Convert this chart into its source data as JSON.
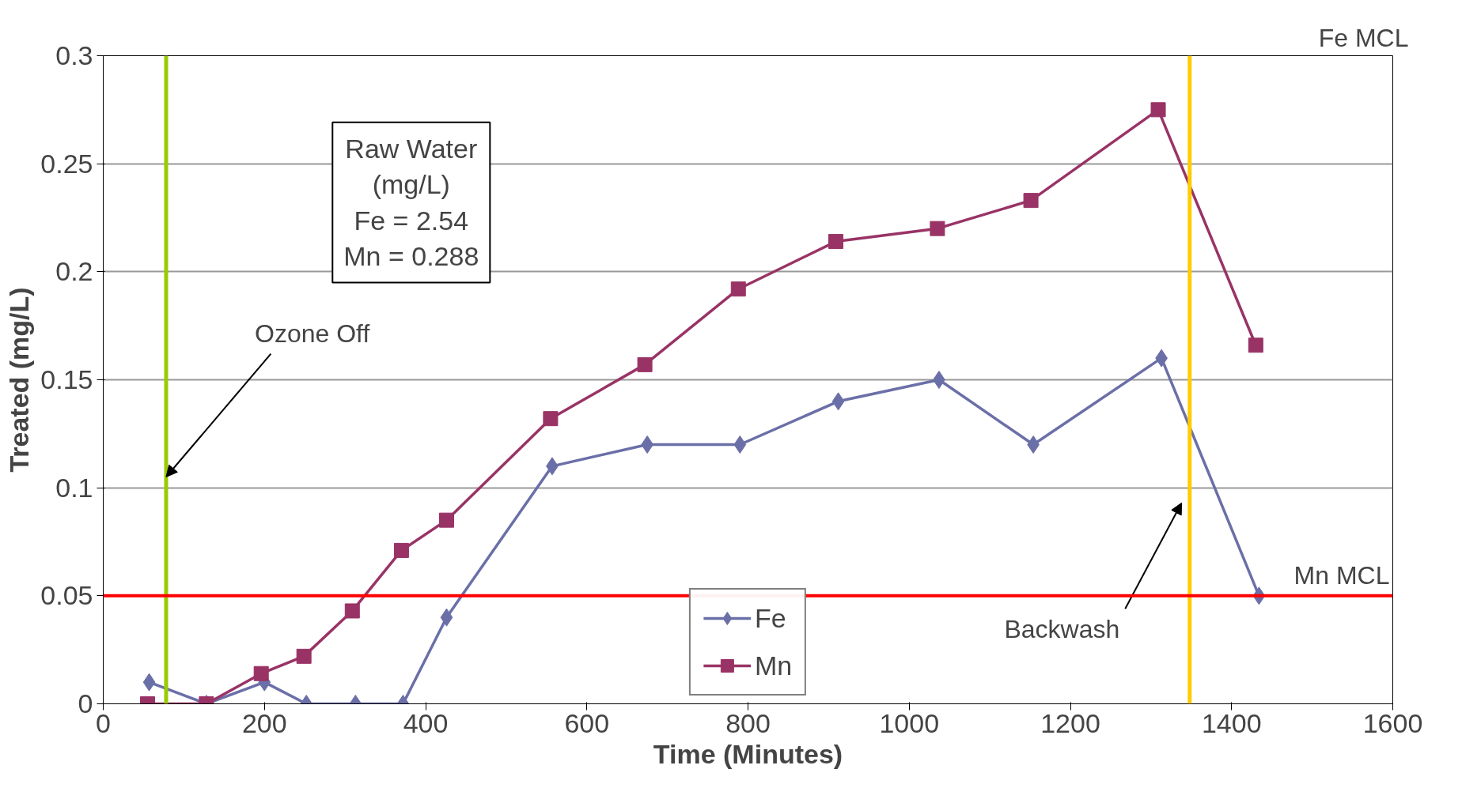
{
  "chart_data": {
    "type": "line",
    "xlabel": "Time (Minutes)",
    "ylabel": "Treated (mg/L)",
    "xlim": [
      0,
      1600
    ],
    "xticks": [
      0,
      200,
      400,
      600,
      800,
      1000,
      1200,
      1400,
      1600
    ],
    "ylim": [
      0,
      0.3
    ],
    "yticks": [
      0,
      0.05,
      0.1,
      0.15,
      0.2,
      0.25,
      0.3
    ],
    "grid": "y",
    "legend": "bottom",
    "line_style": "solid",
    "series": [
      {
        "name": "Fe",
        "color": "#6b6fa8",
        "marker": "diamond",
        "x": [
          57,
          128,
          200,
          252,
          313,
          372,
          426,
          557,
          675,
          790,
          912,
          1037,
          1154,
          1313,
          1434
        ],
        "values": [
          0.01,
          0,
          0.01,
          0,
          0,
          0,
          0.04,
          0.11,
          0.12,
          0.12,
          0.14,
          0.15,
          0.12,
          0.16,
          0.05
        ]
      },
      {
        "name": "Mn",
        "color": "#993366",
        "marker": "square",
        "x": [
          55,
          128,
          196,
          249,
          309,
          370,
          426,
          555,
          672,
          788,
          909,
          1035,
          1151,
          1309,
          1430
        ],
        "values": [
          0,
          0,
          0.014,
          0.022,
          0.043,
          0.071,
          0.085,
          0.132,
          0.157,
          0.192,
          0.214,
          0.22,
          0.233,
          0.275,
          0.166
        ]
      }
    ],
    "ref_lines": [
      {
        "axis": "x",
        "value": 78,
        "label": "Ozone Off",
        "color": "#99cc00"
      },
      {
        "axis": "x",
        "value": 1348,
        "label": "Backwash",
        "color": "#ffcc00"
      },
      {
        "axis": "y",
        "value": 0.05,
        "label": "Mn MCL",
        "color": "#ff0000"
      }
    ],
    "annotations": [
      "Raw Water\n(mg/L)\nFe = 2.54\nMn = 0.288",
      "Fe MCL"
    ]
  }
}
